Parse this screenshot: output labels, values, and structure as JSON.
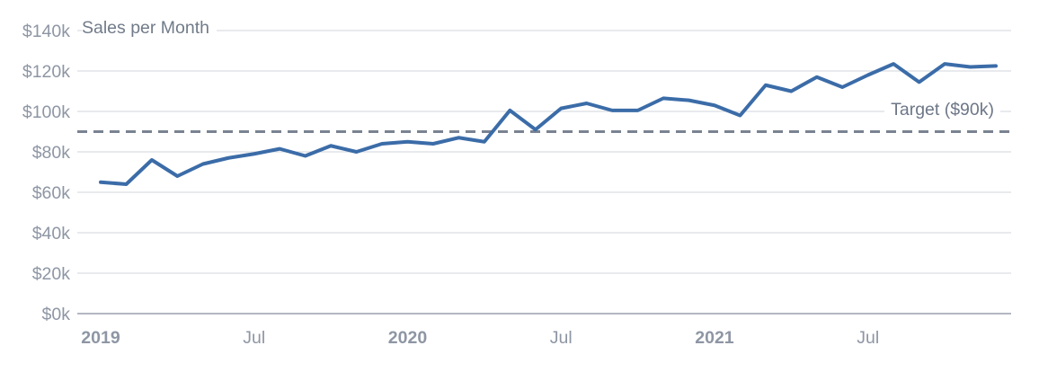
{
  "colors": {
    "line": "#3b6ca8",
    "target_line": "#7a8391",
    "gridline": "#dadde2",
    "axis_line": "#9aa1ae",
    "tick_text": "#8e96a4",
    "title_text": "#717b89"
  },
  "chart_data": {
    "type": "line",
    "title": "Sales per Month",
    "unit": "$k",
    "grid": "horizontal",
    "legend_position": "none",
    "ylim": [
      0,
      140
    ],
    "ytick_step": 20,
    "ytick_labels": [
      "$0k",
      "$20k",
      "$40k",
      "$60k",
      "$80k",
      "$100k",
      "$120k",
      "$140k"
    ],
    "x": [
      "2019-01",
      "2019-02",
      "2019-03",
      "2019-04",
      "2019-05",
      "2019-06",
      "2019-07",
      "2019-08",
      "2019-09",
      "2019-10",
      "2019-11",
      "2019-12",
      "2020-01",
      "2020-02",
      "2020-03",
      "2020-04",
      "2020-05",
      "2020-06",
      "2020-07",
      "2020-08",
      "2020-09",
      "2020-10",
      "2020-11",
      "2020-12",
      "2021-01",
      "2021-02",
      "2021-03",
      "2021-04",
      "2021-05",
      "2021-06",
      "2021-07",
      "2021-08",
      "2021-09",
      "2021-10",
      "2021-11",
      "2021-12"
    ],
    "values": [
      65,
      64,
      76,
      68,
      74,
      77,
      79,
      81.5,
      78,
      83,
      80,
      84,
      85,
      84,
      87,
      85,
      100.5,
      91,
      101.5,
      104,
      100.5,
      100.5,
      106.5,
      105.5,
      103,
      98,
      113,
      110,
      117,
      112,
      118,
      123.5,
      114.5,
      123.5,
      122,
      122.5
    ],
    "xticks": [
      {
        "label": "2019",
        "month_index": 0,
        "bold": true
      },
      {
        "label": "Jul",
        "month_index": 6,
        "bold": false
      },
      {
        "label": "2020",
        "month_index": 12,
        "bold": true
      },
      {
        "label": "Jul",
        "month_index": 18,
        "bold": false
      },
      {
        "label": "2021",
        "month_index": 24,
        "bold": true
      },
      {
        "label": "Jul",
        "month_index": 30,
        "bold": false
      }
    ],
    "target": {
      "value": 90,
      "label": "Target ($90k)",
      "style": "dashed"
    }
  }
}
